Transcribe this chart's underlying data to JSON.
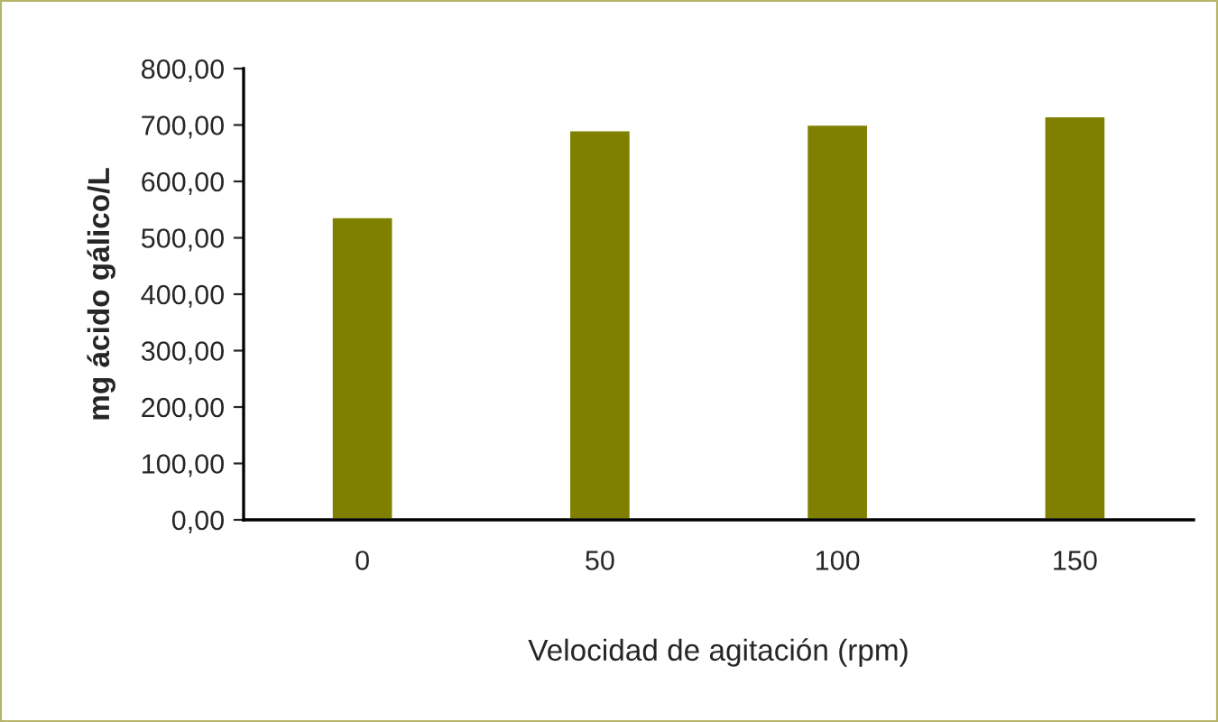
{
  "chart_data": {
    "type": "bar",
    "categories": [
      "0",
      "50",
      "100",
      "150"
    ],
    "values": [
      537,
      691,
      701,
      716
    ],
    "color": "#808000",
    "xlabel": "Velocidad de agitación (rpm)",
    "ylabel": "mg ácido gálico/L",
    "ylim": [
      0,
      800
    ],
    "yticks": [
      {
        "value": 0,
        "label": "0,00"
      },
      {
        "value": 100,
        "label": "100,00"
      },
      {
        "value": 200,
        "label": "200,00"
      },
      {
        "value": 300,
        "label": "300,00"
      },
      {
        "value": 400,
        "label": "400,00"
      },
      {
        "value": 500,
        "label": "500,00"
      },
      {
        "value": 600,
        "label": "600,00"
      },
      {
        "value": 700,
        "label": "700,00"
      },
      {
        "value": 800,
        "label": "800,00"
      }
    ],
    "grid": false
  }
}
